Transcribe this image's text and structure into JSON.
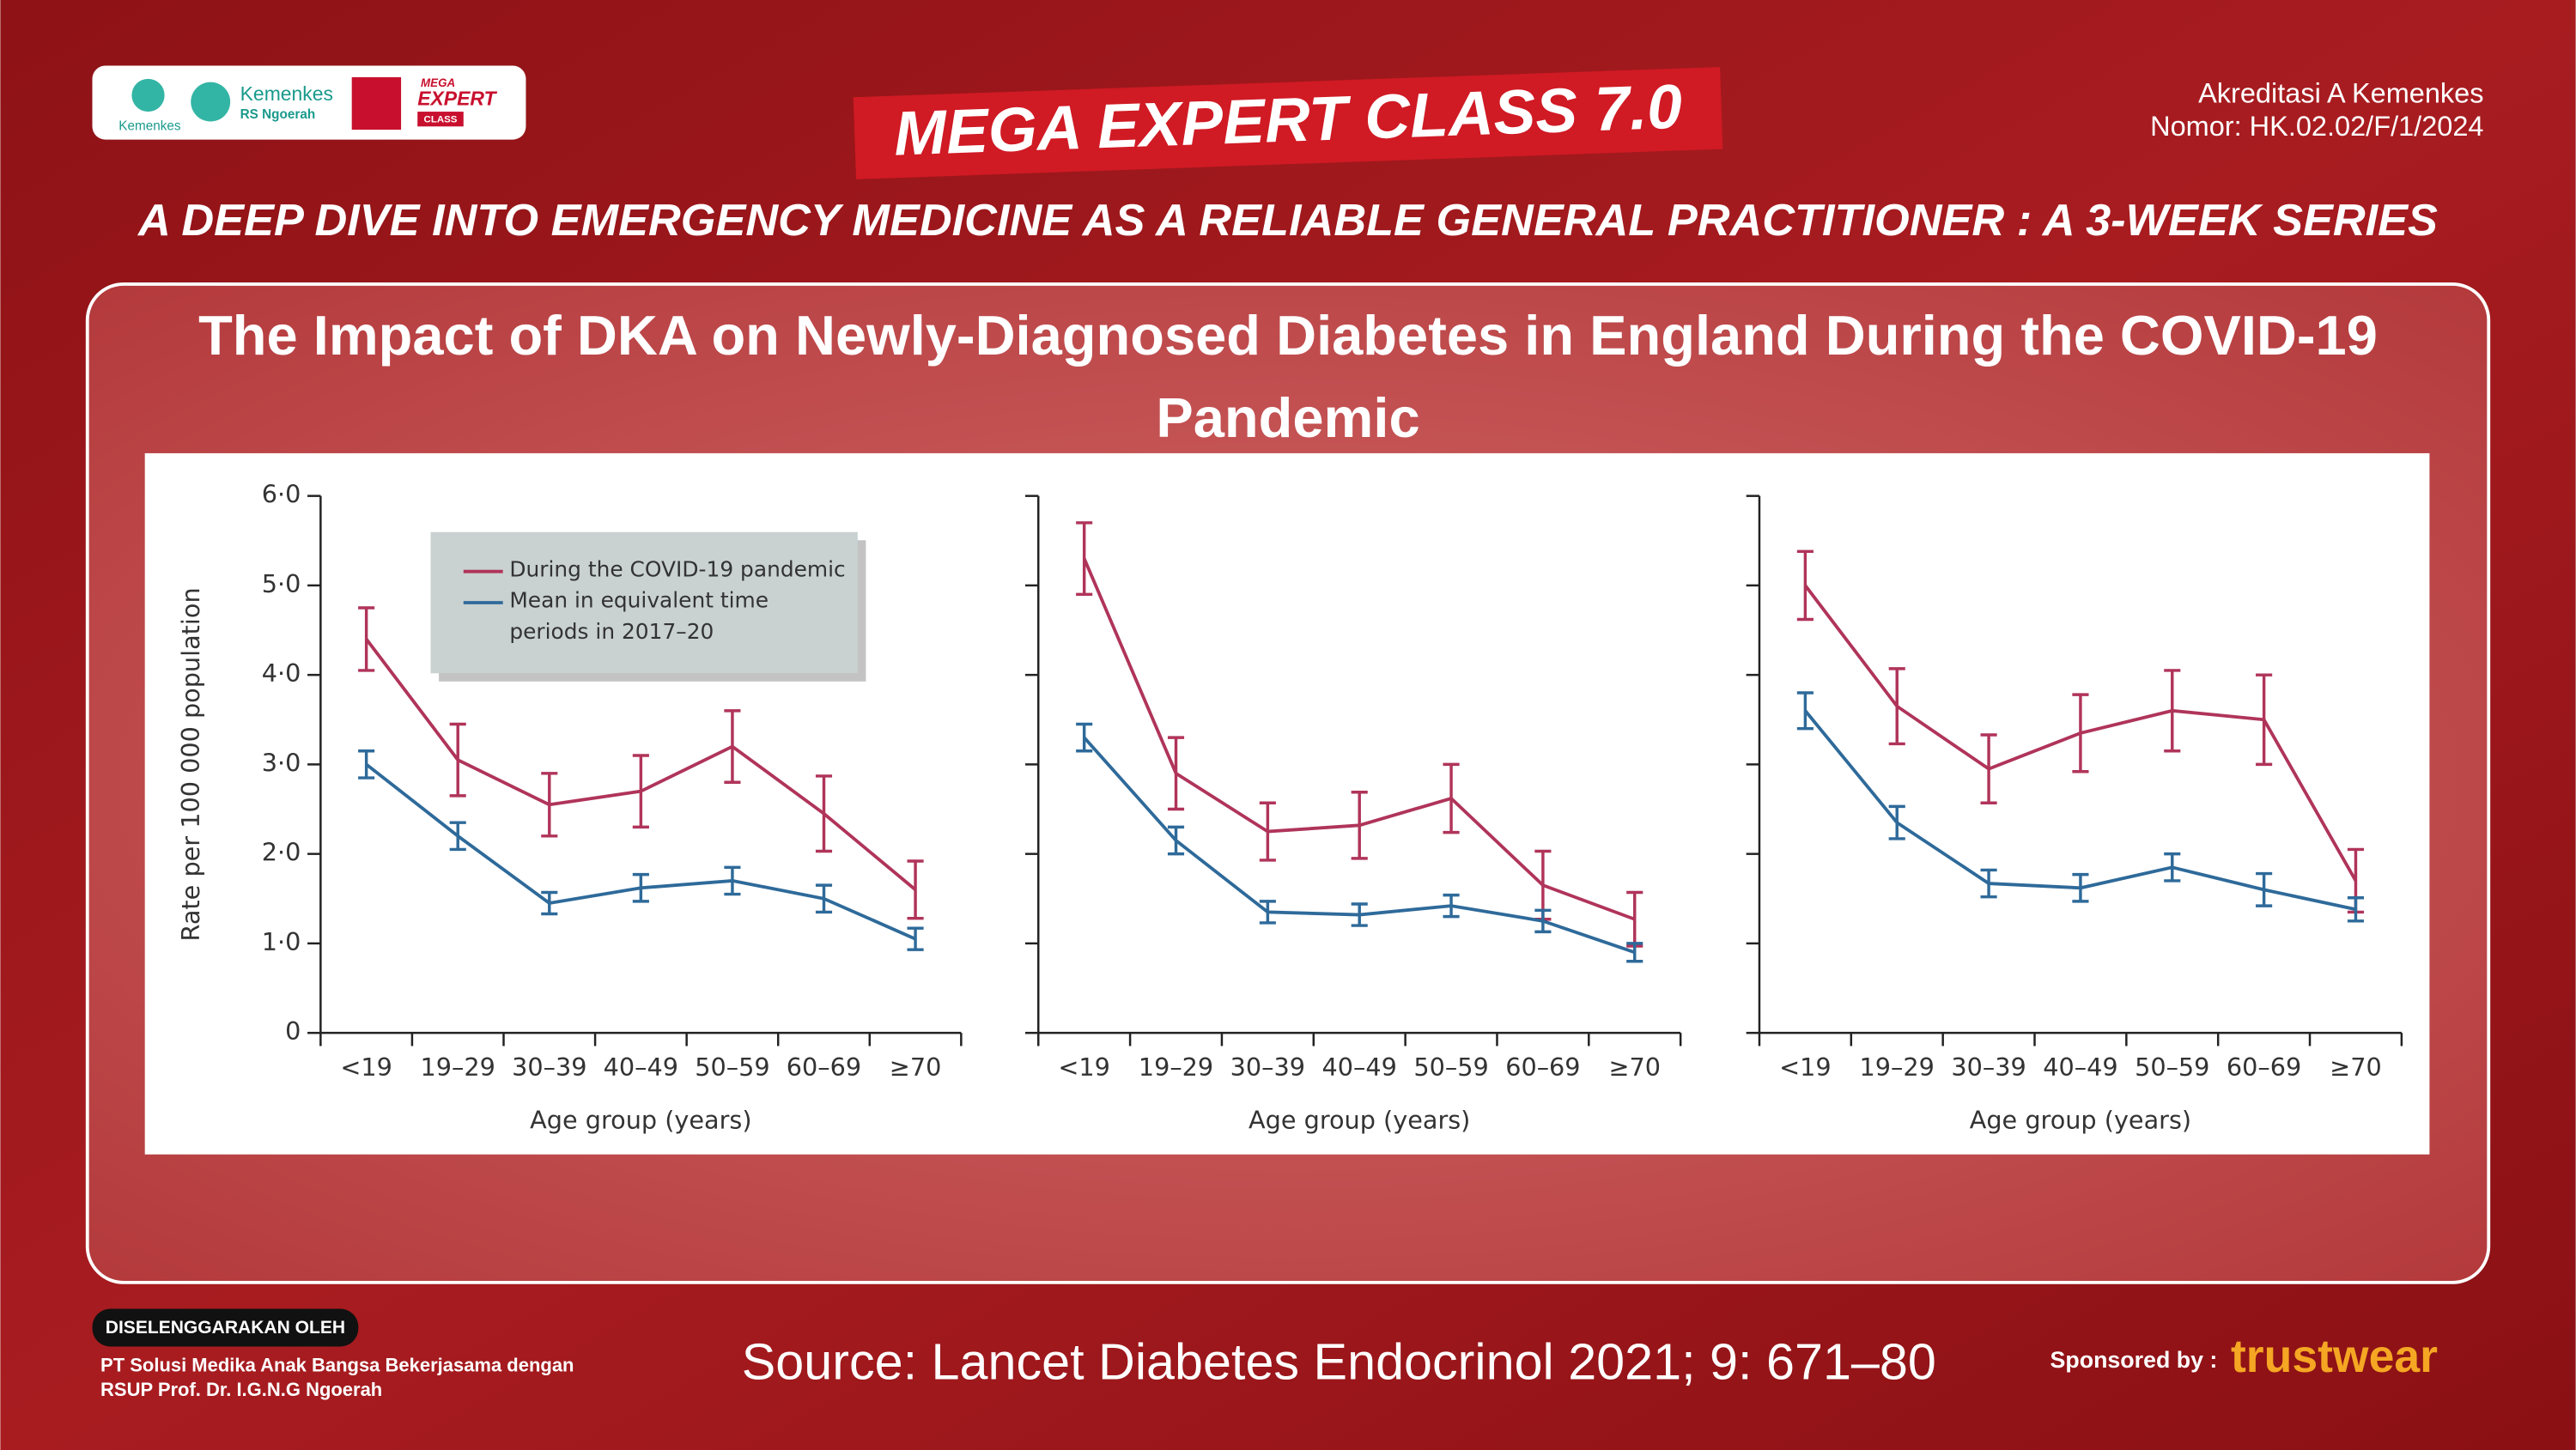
{
  "header": {
    "logos": [
      "Kemenkes",
      "Kemenkes",
      "RS Ngoerah",
      "MEGA",
      "EXPERT",
      "CLASS"
    ],
    "event": "MEGA EXPERT CLASS 7.0",
    "accreditation": [
      "Akreditasi A Kemenkes",
      "Nomor: HK.02.02/F/1/2024"
    ],
    "subtitle": "A DEEP DIVE INTO EMERGENCY MEDICINE AS A RELIABLE GENERAL PRACTITIONER : A 3-WEEK SERIES"
  },
  "slide_title": "The Impact of DKA on Newly-Diagnosed Diabetes in England During the COVID-19 Pandemic",
  "chart_data": [
    {
      "type": "line",
      "ylabel": "Rate per 100 000 population",
      "xlabel": "Age group (years)",
      "categories": [
        "<19",
        "19–29",
        "30–39",
        "40–49",
        "50–59",
        "60–69",
        "≥70"
      ],
      "ylim": [
        0,
        6
      ],
      "yticks": [
        0,
        {
          "value": 1,
          "label": "1·0"
        },
        {
          "value": 2,
          "label": "2·0"
        },
        {
          "value": 3,
          "label": "3·0"
        },
        {
          "value": 4,
          "label": "4·0"
        },
        {
          "value": 5,
          "label": "5·0"
        },
        {
          "value": 6,
          "label": "6·0"
        }
      ],
      "ytick_labels": true,
      "legend": "top-left",
      "series": [
        {
          "name": "During the COVID-19 pandemic",
          "color": "#b0345a",
          "values": [
            4.4,
            3.05,
            2.55,
            2.7,
            3.2,
            2.45,
            1.6
          ],
          "errors": [
            0.35,
            0.4,
            0.35,
            0.4,
            0.4,
            0.42,
            0.32
          ]
        },
        {
          "name": "Mean in equivalent time periods in 2017–20",
          "color": "#2e6a9a",
          "values": [
            3.0,
            2.2,
            1.45,
            1.62,
            1.7,
            1.5,
            1.05
          ],
          "errors": [
            0.15,
            0.15,
            0.12,
            0.15,
            0.15,
            0.15,
            0.12
          ]
        }
      ]
    },
    {
      "type": "line",
      "xlabel": "Age group (years)",
      "categories": [
        "<19",
        "19–29",
        "30–39",
        "40–49",
        "50–59",
        "60–69",
        "≥70"
      ],
      "ylim": [
        0,
        6
      ],
      "yticks": [
        0,
        1,
        2,
        3,
        4,
        5,
        6
      ],
      "ytick_labels": false,
      "series": [
        {
          "color": "#b0345a",
          "values": [
            5.3,
            2.9,
            2.25,
            2.32,
            2.62,
            1.65,
            1.27
          ],
          "errors": [
            0.4,
            0.4,
            0.32,
            0.37,
            0.38,
            0.38,
            0.3
          ]
        },
        {
          "color": "#2e6a9a",
          "values": [
            3.3,
            2.15,
            1.35,
            1.32,
            1.42,
            1.25,
            0.9
          ],
          "errors": [
            0.15,
            0.15,
            0.12,
            0.12,
            0.12,
            0.12,
            0.1
          ]
        }
      ]
    },
    {
      "type": "line",
      "xlabel": "Age group (years)",
      "categories": [
        "<19",
        "19–29",
        "30–39",
        "40–49",
        "50–59",
        "60–69",
        "≥70"
      ],
      "ylim": [
        0,
        6
      ],
      "yticks": [
        0,
        1,
        2,
        3,
        4,
        5,
        6
      ],
      "ytick_labels": false,
      "series": [
        {
          "color": "#b0345a",
          "values": [
            5.0,
            3.65,
            2.95,
            3.35,
            3.6,
            3.5,
            1.7
          ],
          "errors": [
            0.38,
            0.42,
            0.38,
            0.43,
            0.45,
            0.5,
            0.35
          ]
        },
        {
          "color": "#2e6a9a",
          "values": [
            3.6,
            2.35,
            1.67,
            1.62,
            1.85,
            1.6,
            1.38
          ],
          "errors": [
            0.2,
            0.18,
            0.15,
            0.15,
            0.15,
            0.18,
            0.13
          ]
        }
      ]
    }
  ],
  "footer": {
    "organizer_label": "DISELENGGARAKAN OLEH",
    "organizer": [
      "PT Solusi Medika Anak Bangsa Bekerjasama dengan",
      "RSUP Prof. Dr. I.G.N.G Ngoerah"
    ],
    "source": "Source: Lancet Diabetes Endocrinol 2021; 9: 671–80",
    "sponsor_label": "Sponsored by :",
    "sponsor": "trustwear"
  }
}
